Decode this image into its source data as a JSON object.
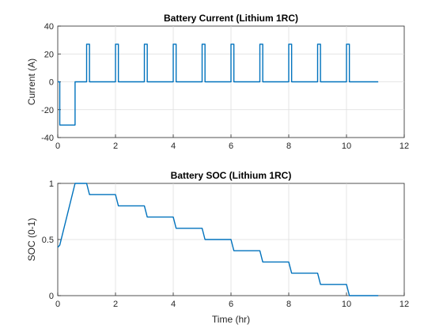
{
  "chart_data": [
    {
      "type": "line",
      "title": "Battery Current (Lithium 1RC)",
      "xlabel": "",
      "ylabel": "Current (A)",
      "xlim": [
        0,
        12
      ],
      "ylim": [
        -40,
        40
      ],
      "xticks": [
        "0",
        "2",
        "4",
        "6",
        "8",
        "10",
        "12"
      ],
      "yticks": [
        "-40",
        "-20",
        "0",
        "20",
        "40"
      ],
      "grid": true,
      "color": "#0072BD",
      "series": [
        {
          "x": [
            0,
            0.07,
            0.07,
            0.6,
            0.6,
            1.0,
            1.0,
            1.1,
            1.1,
            2.0,
            2.0,
            2.1,
            2.1,
            3.0,
            3.0,
            3.1,
            3.1,
            4.0,
            4.0,
            4.1,
            4.1,
            5.0,
            5.0,
            5.1,
            5.1,
            6.0,
            6.0,
            6.1,
            6.1,
            7.0,
            7.0,
            7.1,
            7.1,
            8.0,
            8.0,
            8.1,
            8.1,
            9.0,
            9.0,
            9.1,
            9.1,
            10.0,
            10.0,
            10.1,
            10.1,
            11.1
          ],
          "y": [
            0,
            0,
            -31,
            -31,
            0,
            0,
            27,
            27,
            0,
            0,
            27,
            27,
            0,
            0,
            27,
            27,
            0,
            0,
            27,
            27,
            0,
            0,
            27,
            27,
            0,
            0,
            27,
            27,
            0,
            0,
            27,
            27,
            0,
            0,
            27,
            27,
            0,
            0,
            27,
            27,
            0,
            0,
            27,
            27,
            0,
            0
          ]
        }
      ]
    },
    {
      "type": "line",
      "title": "Battery SOC (Lithium 1RC)",
      "xlabel": "Time (hr)",
      "ylabel": "SOC (0-1)",
      "xlim": [
        0,
        12
      ],
      "ylim": [
        0,
        1
      ],
      "xticks": [
        "0",
        "2",
        "4",
        "6",
        "8",
        "10",
        "12"
      ],
      "yticks": [
        "0",
        "0.5",
        "1"
      ],
      "grid": true,
      "color": "#0072BD",
      "series": [
        {
          "x": [
            0,
            0.07,
            0.6,
            1.0,
            1.1,
            2.0,
            2.1,
            3.0,
            3.1,
            4.0,
            4.1,
            5.0,
            5.1,
            6.0,
            6.1,
            7.0,
            7.1,
            8.0,
            8.1,
            9.0,
            9.1,
            10.0,
            10.1,
            11.1
          ],
          "y": [
            0.43,
            0.45,
            1.0,
            1.0,
            0.9,
            0.9,
            0.8,
            0.8,
            0.7,
            0.7,
            0.6,
            0.6,
            0.5,
            0.5,
            0.4,
            0.4,
            0.3,
            0.3,
            0.2,
            0.2,
            0.1,
            0.1,
            0.0,
            0.0
          ]
        }
      ]
    }
  ]
}
